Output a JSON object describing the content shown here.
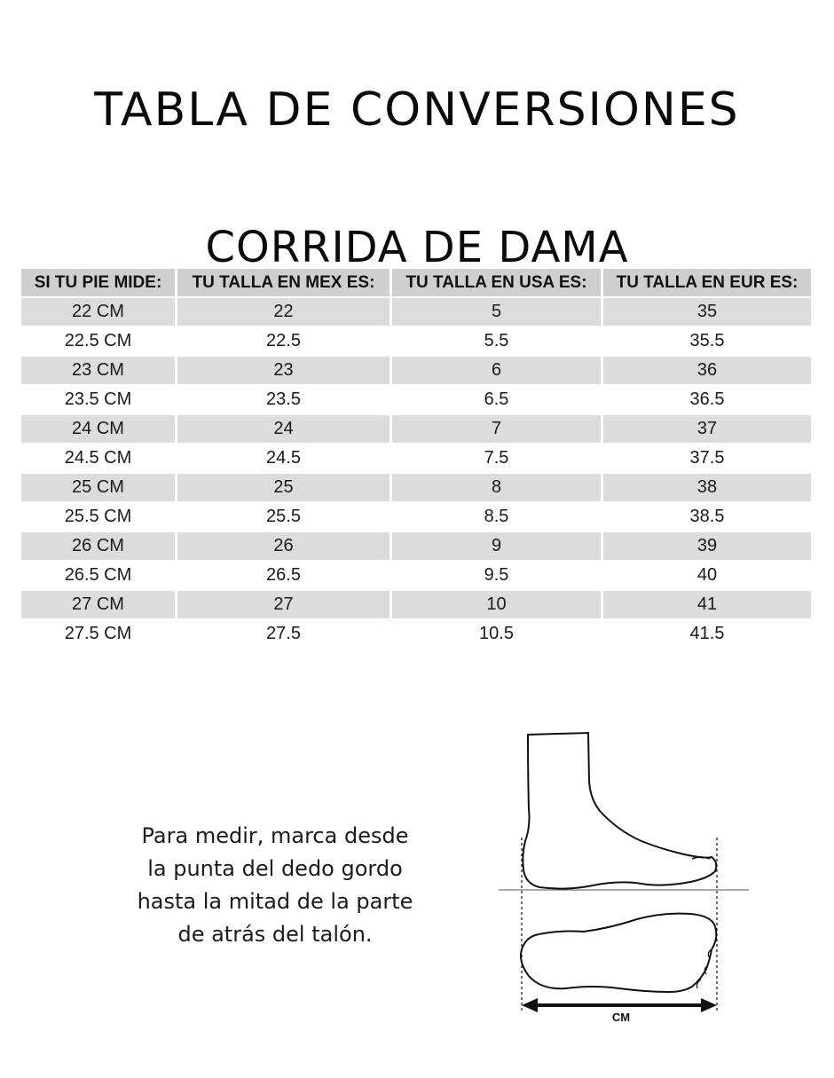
{
  "title": "TABLA DE CONVERSIONES",
  "subtitle": "CORRIDA DE DAMA",
  "table": {
    "headers": [
      "SI TU PIE MIDE:",
      "TU TALLA EN MEX ES:",
      "TU TALLA EN USA ES:",
      "TU TALLA EN EUR ES:"
    ],
    "rows": [
      [
        "22 CM",
        "22",
        "5",
        "35"
      ],
      [
        "22.5 CM",
        "22.5",
        "5.5",
        "35.5"
      ],
      [
        "23 CM",
        "23",
        "6",
        "36"
      ],
      [
        "23.5 CM",
        "23.5",
        "6.5",
        "36.5"
      ],
      [
        "24 CM",
        "24",
        "7",
        "37"
      ],
      [
        "24.5 CM",
        "24.5",
        "7.5",
        "37.5"
      ],
      [
        "25 CM",
        "25",
        "8",
        "38"
      ],
      [
        "25.5 CM",
        "25.5",
        "8.5",
        "38.5"
      ],
      [
        "26 CM",
        "26",
        "9",
        "39"
      ],
      [
        "26.5 CM",
        "26.5",
        "9.5",
        "40"
      ],
      [
        "27 CM",
        "27",
        "10",
        "41"
      ],
      [
        "27.5 CM",
        "27.5",
        "10.5",
        "41.5"
      ]
    ]
  },
  "instructions": {
    "lines": [
      "Para medir, marca desde",
      "la punta del dedo gordo",
      "hasta la mitad de la parte",
      "de atrás del talón."
    ]
  },
  "diagram": {
    "icon": "foot-measure-icon",
    "label": "CM"
  },
  "colors": {
    "header_bg": "#cfcfcf",
    "row_shade": "#dcdcdc",
    "text": "#111111"
  }
}
